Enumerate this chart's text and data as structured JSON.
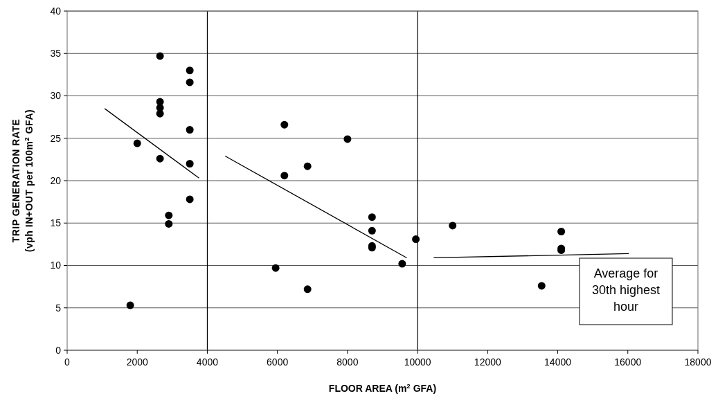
{
  "chart_data": {
    "type": "scatter",
    "xlabel": "FLOOR AREA (m$^{2}$ GFA)",
    "ylabel": "TRIP GENERATION RATE\n(vph IN+OUT per 100m$^{2}$ GFA)",
    "xlim": [
      0,
      18000
    ],
    "ylim": [
      0,
      40
    ],
    "xticks": [
      0,
      2000,
      4000,
      6000,
      8000,
      10000,
      12000,
      14000,
      16000,
      18000
    ],
    "yticks": [
      0,
      5,
      10,
      15,
      20,
      25,
      30,
      35,
      40
    ],
    "grid": "y",
    "marker": "circle",
    "ref_lines": [
      {
        "axis": "x",
        "value": 4000,
        "color": "#000000"
      },
      {
        "axis": "x",
        "value": 10000,
        "color": "#000000"
      }
    ],
    "annotations": [
      "Average for\n30th highest\nhour"
    ],
    "series": [
      {
        "color": "#000000",
        "x": [
          1800,
          2000,
          2650,
          2650,
          2650,
          2650,
          2650,
          2900,
          2900,
          3500,
          3500,
          3500,
          3500,
          3500,
          5950,
          6200,
          6200,
          6860,
          6860,
          8000,
          8700,
          8700,
          8700,
          8700,
          9560,
          9950,
          11000,
          13540,
          14100,
          14100,
          14100
        ],
        "values": [
          5.3,
          24.4,
          34.7,
          29.3,
          28.6,
          27.9,
          22.6,
          15.9,
          14.9,
          33.0,
          31.6,
          26.0,
          22.0,
          17.8,
          9.7,
          26.6,
          20.6,
          21.7,
          7.2,
          24.9,
          15.7,
          14.1,
          12.3,
          12.1,
          10.2,
          13.1,
          14.7,
          7.6,
          14.0,
          12.0,
          11.8
        ]
      },
      {
        "type": "line",
        "color": "#000000",
        "marker": "none",
        "x": [
          1070,
          3764
        ],
        "values": [
          28.5,
          20.3
        ]
      },
      {
        "type": "line",
        "color": "#000000",
        "marker": "none",
        "x": [
          4510,
          9690
        ],
        "values": [
          22.9,
          10.9
        ]
      },
      {
        "type": "line",
        "color": "#000000",
        "marker": "none",
        "x": [
          10460,
          16030
        ],
        "values": [
          10.9,
          11.4
        ]
      }
    ]
  }
}
